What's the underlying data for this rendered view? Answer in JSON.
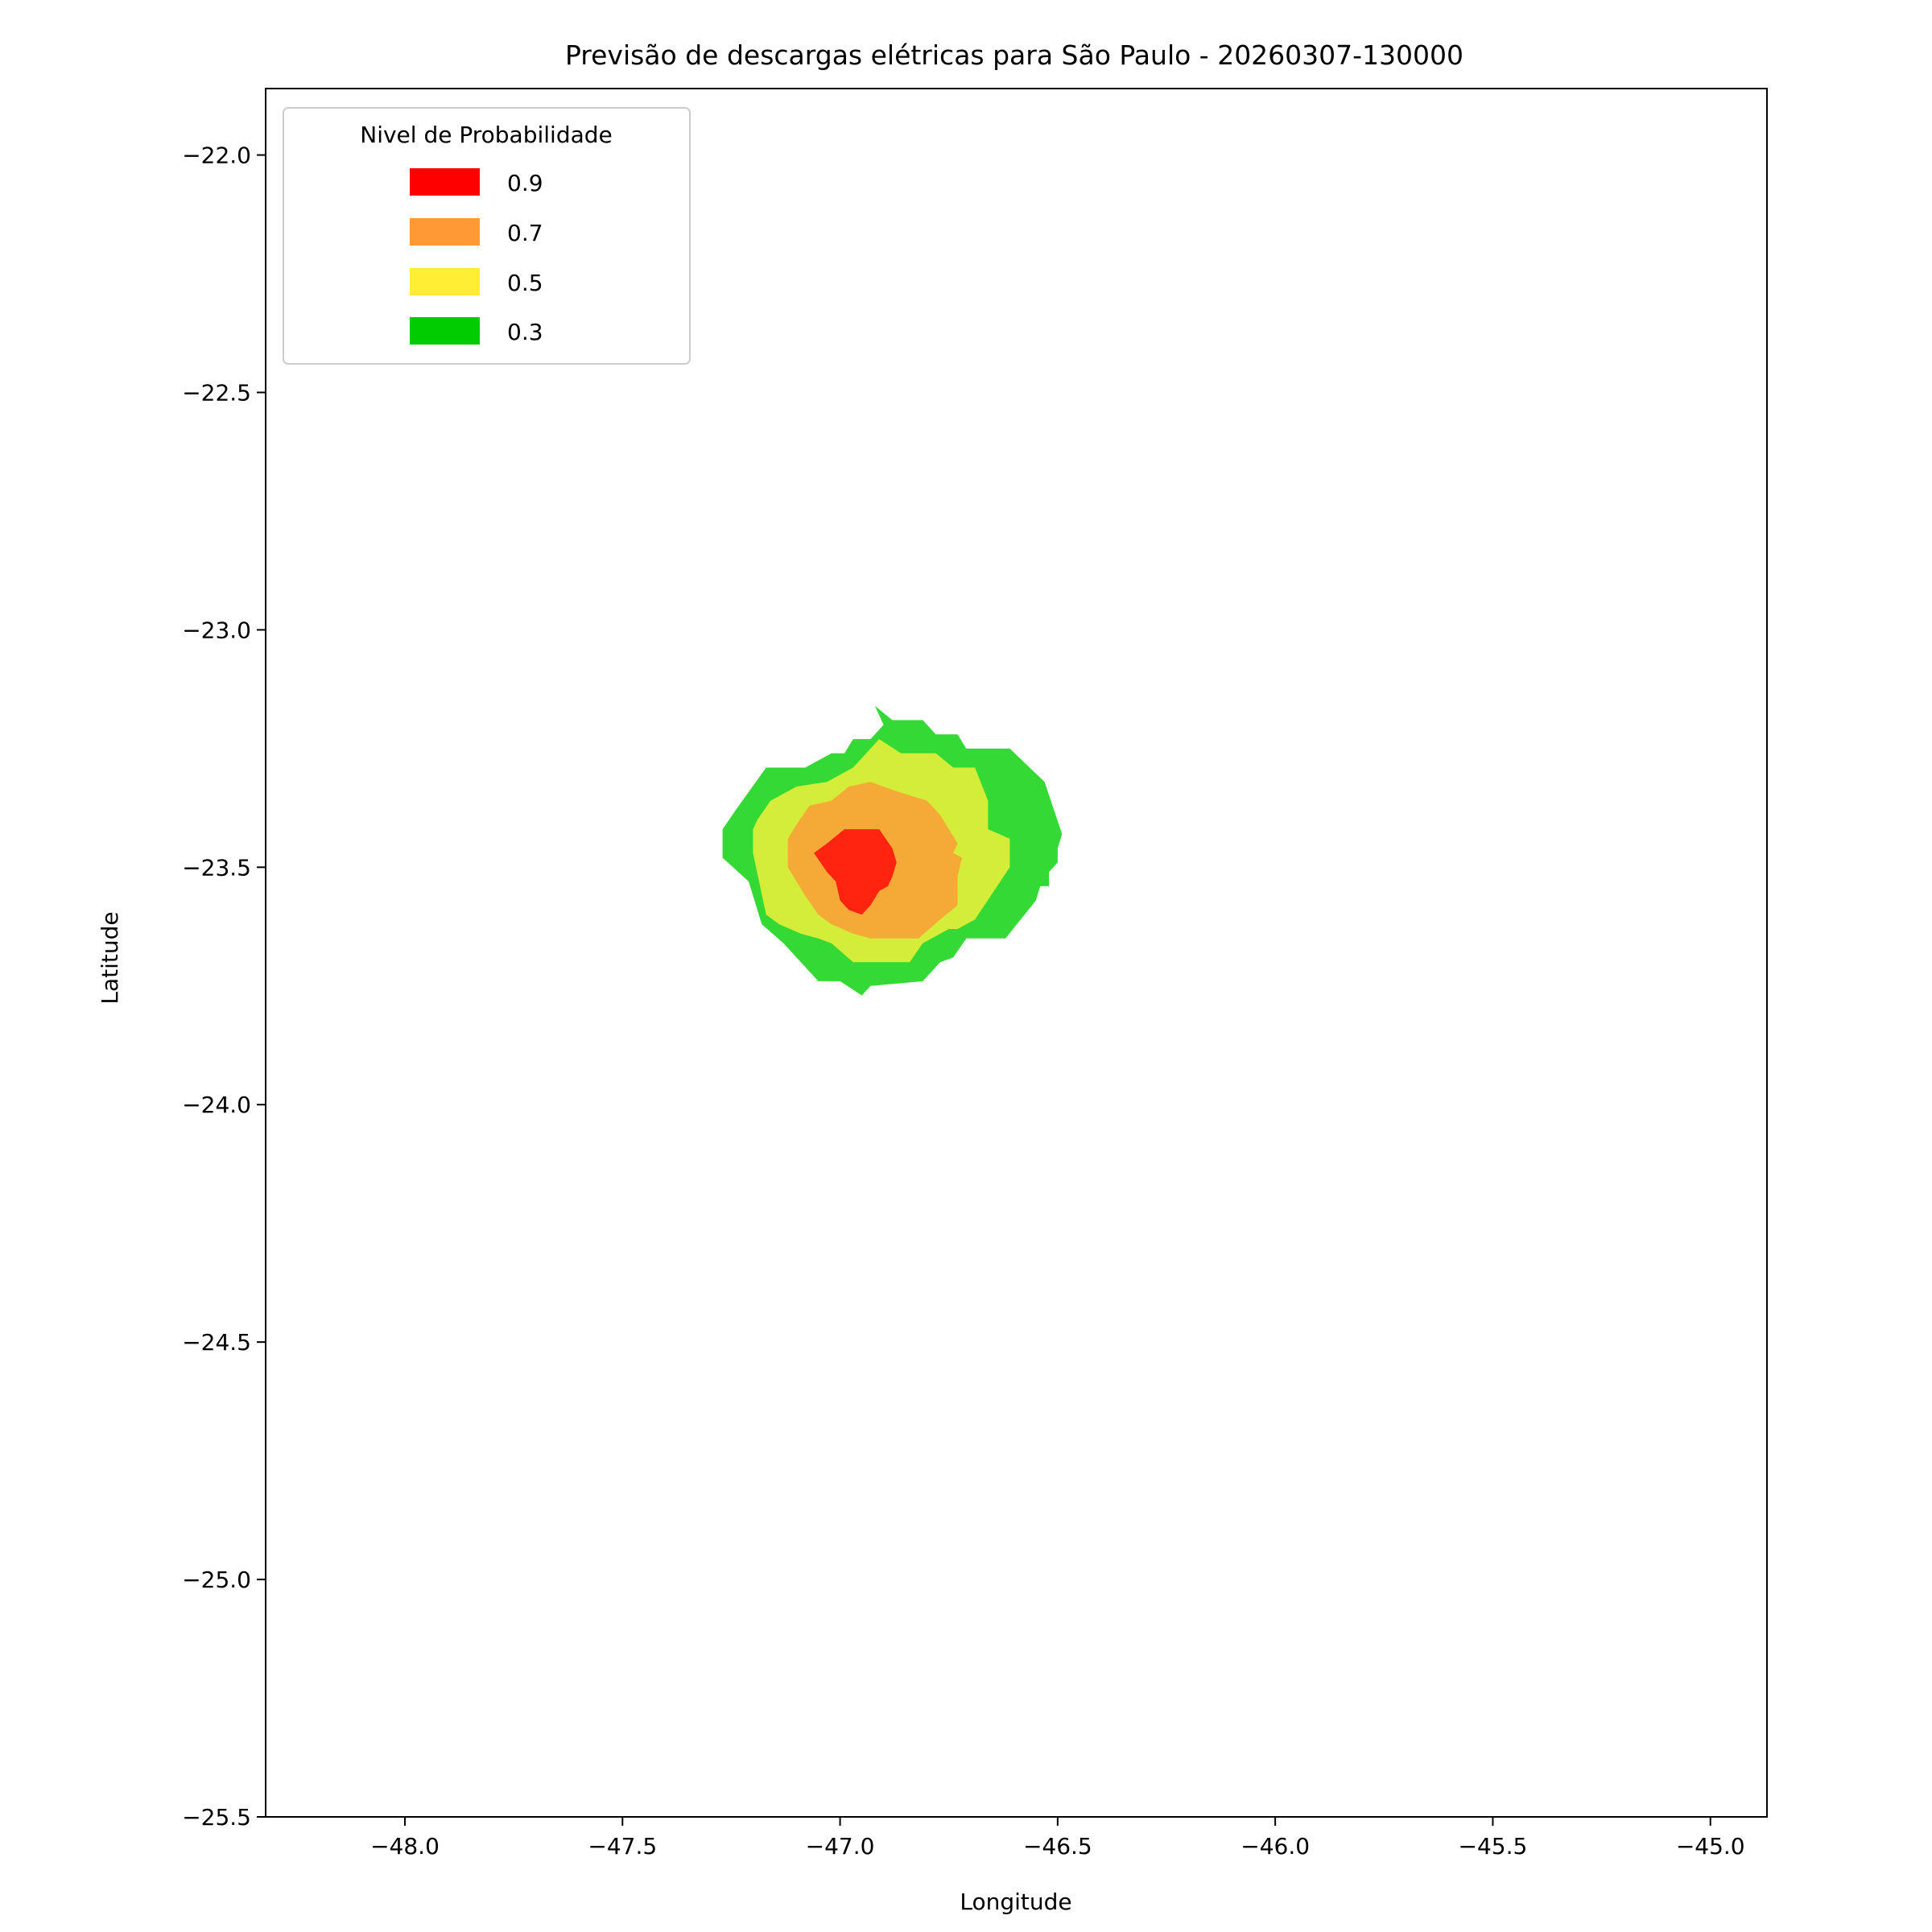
{
  "chart_data": {
    "type": "contour",
    "title": "Previsão de descargas elétricas para São Paulo - 20260307-130000",
    "xlabel": "Longitude",
    "ylabel": "Latitude",
    "xlim": [
      -48.32,
      -44.87
    ],
    "ylim": [
      -25.5,
      -21.86
    ],
    "xticks": [
      -48.0,
      -47.5,
      -47.0,
      -46.5,
      -46.0,
      -45.5,
      -45.0
    ],
    "xtick_labels": [
      "−48.0",
      "−47.5",
      "−47.0",
      "−46.5",
      "−46.0",
      "−45.5",
      "−45.0"
    ],
    "yticks": [
      -22.0,
      -22.5,
      -23.0,
      -23.5,
      -24.0,
      -24.5,
      -25.0,
      -25.5
    ],
    "ytick_labels": [
      "−22.0",
      "−22.5",
      "−23.0",
      "−23.5",
      "−24.0",
      "−24.5",
      "−25.0",
      "−25.5"
    ],
    "grid": false,
    "legend": {
      "title": "Nivel de Probabilidade",
      "placement": "top-left",
      "entries": [
        {
          "label": "0.9",
          "color": "#ff0000"
        },
        {
          "label": "0.7",
          "color": "#ff9933"
        },
        {
          "label": "0.5",
          "color": "#ffee33"
        },
        {
          "label": "0.3",
          "color": "#00cc00"
        }
      ]
    },
    "levels": [
      {
        "level": 0.3,
        "fill": "#35d935",
        "polygon": [
          [
            -46.92,
            -23.16
          ],
          [
            -46.88,
            -23.19
          ],
          [
            -46.81,
            -23.19
          ],
          [
            -46.78,
            -23.22
          ],
          [
            -46.73,
            -23.22
          ],
          [
            -46.71,
            -23.25
          ],
          [
            -46.61,
            -23.25
          ],
          [
            -46.53,
            -23.32
          ],
          [
            -46.49,
            -23.43
          ],
          [
            -46.5,
            -23.46
          ],
          [
            -46.5,
            -23.49
          ],
          [
            -46.52,
            -23.51
          ],
          [
            -46.52,
            -23.54
          ],
          [
            -46.54,
            -23.54
          ],
          [
            -46.55,
            -23.57
          ],
          [
            -46.62,
            -23.65
          ],
          [
            -46.71,
            -23.65
          ],
          [
            -46.74,
            -23.69
          ],
          [
            -46.77,
            -23.7
          ],
          [
            -46.81,
            -23.74
          ],
          [
            -46.93,
            -23.75
          ],
          [
            -46.95,
            -23.77
          ],
          [
            -47.0,
            -23.74
          ],
          [
            -47.05,
            -23.74
          ],
          [
            -47.13,
            -23.66
          ],
          [
            -47.18,
            -23.62
          ],
          [
            -47.21,
            -23.53
          ],
          [
            -47.27,
            -23.48
          ],
          [
            -47.27,
            -23.42
          ],
          [
            -47.24,
            -23.38
          ],
          [
            -47.17,
            -23.29
          ],
          [
            -47.08,
            -23.29
          ],
          [
            -47.02,
            -23.26
          ],
          [
            -46.99,
            -23.26
          ],
          [
            -46.97,
            -23.23
          ],
          [
            -46.93,
            -23.23
          ],
          [
            -46.9,
            -23.2
          ]
        ]
      },
      {
        "level": 0.5,
        "fill": "#d4ed38",
        "polygon": [
          [
            -46.91,
            -23.23
          ],
          [
            -46.86,
            -23.26
          ],
          [
            -46.78,
            -23.26
          ],
          [
            -46.74,
            -23.29
          ],
          [
            -46.69,
            -23.29
          ],
          [
            -46.66,
            -23.36
          ],
          [
            -46.66,
            -23.42
          ],
          [
            -46.61,
            -23.44
          ],
          [
            -46.61,
            -23.5
          ],
          [
            -46.69,
            -23.61
          ],
          [
            -46.71,
            -23.62
          ],
          [
            -46.73,
            -23.63
          ],
          [
            -46.75,
            -23.63
          ],
          [
            -46.81,
            -23.66
          ],
          [
            -46.84,
            -23.7
          ],
          [
            -46.97,
            -23.7
          ],
          [
            -47.02,
            -23.66
          ],
          [
            -47.05,
            -23.65
          ],
          [
            -47.09,
            -23.64
          ],
          [
            -47.14,
            -23.62
          ],
          [
            -47.17,
            -23.6
          ],
          [
            -47.2,
            -23.47
          ],
          [
            -47.2,
            -23.42
          ],
          [
            -47.19,
            -23.4
          ],
          [
            -47.16,
            -23.36
          ],
          [
            -47.1,
            -23.33
          ],
          [
            -47.03,
            -23.32
          ],
          [
            -46.97,
            -23.29
          ],
          [
            -46.96,
            -23.28
          ]
        ]
      },
      {
        "level": 0.7,
        "fill": "#f5a937",
        "polygon": [
          [
            -46.93,
            -23.32
          ],
          [
            -46.87,
            -23.34
          ],
          [
            -46.8,
            -23.36
          ],
          [
            -46.77,
            -23.39
          ],
          [
            -46.75,
            -23.42
          ],
          [
            -46.73,
            -23.45
          ],
          [
            -46.74,
            -23.47
          ],
          [
            -46.72,
            -23.48
          ],
          [
            -46.73,
            -23.52
          ],
          [
            -46.73,
            -23.58
          ],
          [
            -46.77,
            -23.61
          ],
          [
            -46.82,
            -23.65
          ],
          [
            -46.87,
            -23.65
          ],
          [
            -46.93,
            -23.65
          ],
          [
            -46.97,
            -23.64
          ],
          [
            -47.02,
            -23.62
          ],
          [
            -47.05,
            -23.6
          ],
          [
            -47.08,
            -23.56
          ],
          [
            -47.12,
            -23.5
          ],
          [
            -47.12,
            -23.44
          ],
          [
            -47.1,
            -23.41
          ],
          [
            -47.07,
            -23.37
          ],
          [
            -47.02,
            -23.36
          ],
          [
            -46.98,
            -23.33
          ]
        ]
      },
      {
        "level": 0.9,
        "fill": "#ff2410",
        "polygon": [
          [
            -46.99,
            -23.42
          ],
          [
            -46.91,
            -23.42
          ],
          [
            -46.88,
            -23.46
          ],
          [
            -46.87,
            -23.49
          ],
          [
            -46.88,
            -23.52
          ],
          [
            -46.89,
            -23.54
          ],
          [
            -46.91,
            -23.55
          ],
          [
            -46.93,
            -23.58
          ],
          [
            -46.95,
            -23.6
          ],
          [
            -46.98,
            -23.59
          ],
          [
            -47.0,
            -23.57
          ],
          [
            -47.01,
            -23.53
          ],
          [
            -47.03,
            -23.51
          ],
          [
            -47.06,
            -23.47
          ],
          [
            -47.03,
            -23.45
          ]
        ]
      }
    ]
  }
}
